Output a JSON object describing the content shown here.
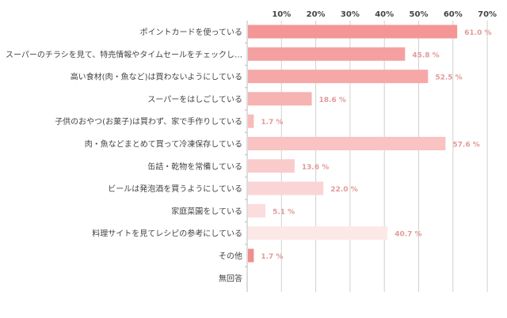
{
  "chart_data": {
    "type": "bar",
    "orientation": "horizontal",
    "title": "",
    "xlabel": "",
    "ylabel": "",
    "xlim": [
      0,
      70
    ],
    "xticks": [
      "10%",
      "20%",
      "30%",
      "40%",
      "50%",
      "60%",
      "70%"
    ],
    "grid": true,
    "categories": [
      "ポイントカードを使っている",
      "スーパーのチラシを見て、特売情報やタイムセールをチェックし…",
      "高い食材(肉・魚など)は買わないようにしている",
      "スーパーをはしごしている",
      "子供のおやつ(お菓子)は買わず、家で手作りしている",
      "肉・魚などまとめて買って冷凍保存している",
      "缶詰・乾物を常備している",
      "ビールは発泡酒を買うようにしている",
      "家庭菜園をしている",
      "料理サイトを見てレシピの参考にしている",
      "その他",
      "無回答"
    ],
    "values": [
      61.0,
      45.8,
      52.5,
      18.6,
      1.7,
      57.6,
      13.6,
      22.0,
      5.1,
      40.7,
      1.7,
      null
    ],
    "value_labels": [
      "61.0 %",
      "45.8 %",
      "52.5 %",
      "18.6 %",
      "1.7 %",
      "57.6 %",
      "13.6 %",
      "22.0 %",
      "5.1 %",
      "40.7 %",
      "1.7 %",
      ""
    ],
    "colors": [
      "#f49696",
      "#f5a0a0",
      "#f6a8a8",
      "#f7b2b2",
      "#f8baba",
      "#f9c3c3",
      "#facbcb",
      "#fbd5d5",
      "#fcdddd",
      "#fde8e8",
      "#ef8e8e",
      "#ffffff"
    ],
    "label_color": "#e39a9a",
    "grid_color": "#d0d0d0"
  }
}
